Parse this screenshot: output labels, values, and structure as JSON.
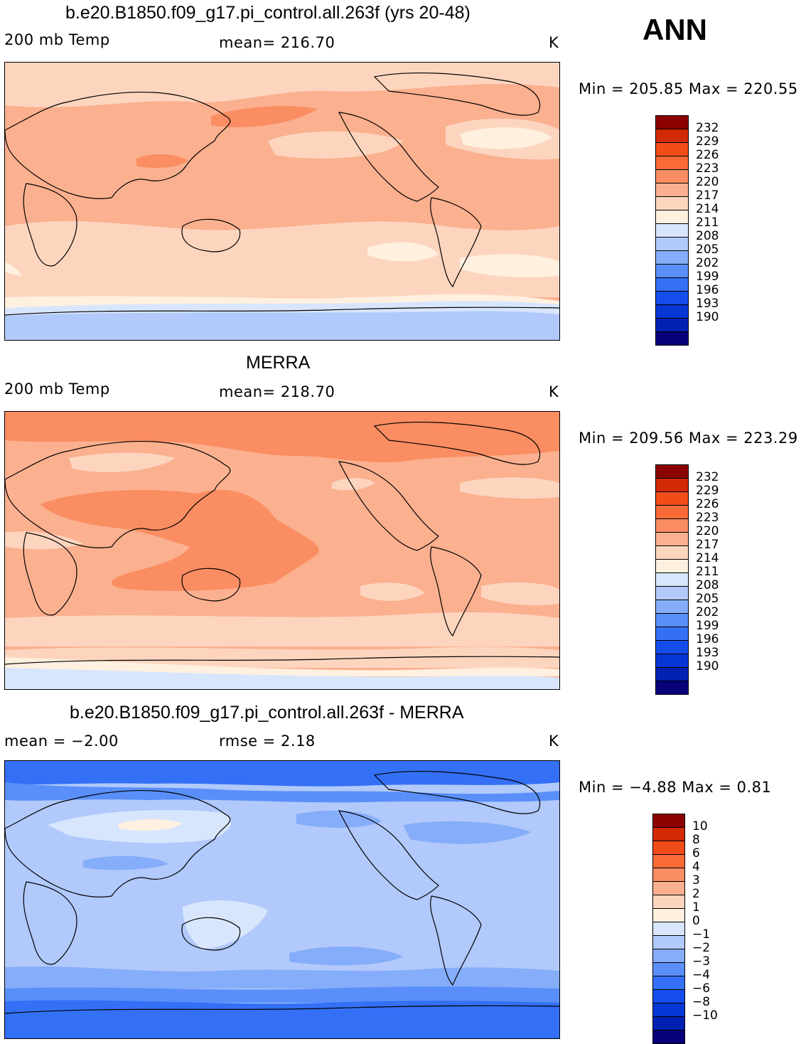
{
  "season": "ANN",
  "colors": {
    "abs": [
      "#08007a",
      "#0022b3",
      "#0636d4",
      "#154dec",
      "#3370f5",
      "#5a8ff9",
      "#86adf9",
      "#b1c9fb",
      "#d8e6fd",
      "#fff0e0",
      "#fdd5bf",
      "#fbb08f",
      "#fa8d62",
      "#f96a37",
      "#f24c18",
      "#d22a05",
      "#8b0000"
    ],
    "diff": [
      "#08007a",
      "#0022b3",
      "#0636d4",
      "#154dec",
      "#3370f5",
      "#5a8ff9",
      "#86adf9",
      "#b1c9fb",
      "#d8e6fd",
      "#fff0e0",
      "#fdd5bf",
      "#fbb08f",
      "#fa8d62",
      "#f96a37",
      "#f24c18",
      "#d22a05",
      "#8b0000"
    ]
  },
  "panels": [
    {
      "title": "b.e20.B1850.f09_g17.pi_control.all.263f (yrs 20-48)",
      "left_label": "200 mb Temp",
      "center_label": "mean=  216.70",
      "units": "K",
      "minmax": "Min = 205.85 Max = 220.55",
      "levels": [
        "232",
        "229",
        "226",
        "223",
        "220",
        "217",
        "214",
        "211",
        "208",
        "205",
        "202",
        "199",
        "196",
        "193",
        "190"
      ]
    },
    {
      "title": "MERRA",
      "left_label": "200 mb Temp",
      "center_label": "mean=  218.70",
      "units": "K",
      "minmax": "Min = 209.56 Max = 223.29",
      "levels": [
        "232",
        "229",
        "226",
        "223",
        "220",
        "217",
        "214",
        "211",
        "208",
        "205",
        "202",
        "199",
        "196",
        "193",
        "190"
      ]
    },
    {
      "title": "b.e20.B1850.f09_g17.pi_control.all.263f - MERRA",
      "left_label": "mean =   −2.00",
      "center_label": "rmse =    2.18",
      "units": "K",
      "minmax": "Min =  −4.88 Max =   0.81",
      "levels": [
        "10",
        "8",
        "6",
        "4",
        "3",
        "2",
        "1",
        "0",
        "−1",
        "−2",
        "−3",
        "−4",
        "−6",
        "−8",
        "−10"
      ]
    }
  ]
}
